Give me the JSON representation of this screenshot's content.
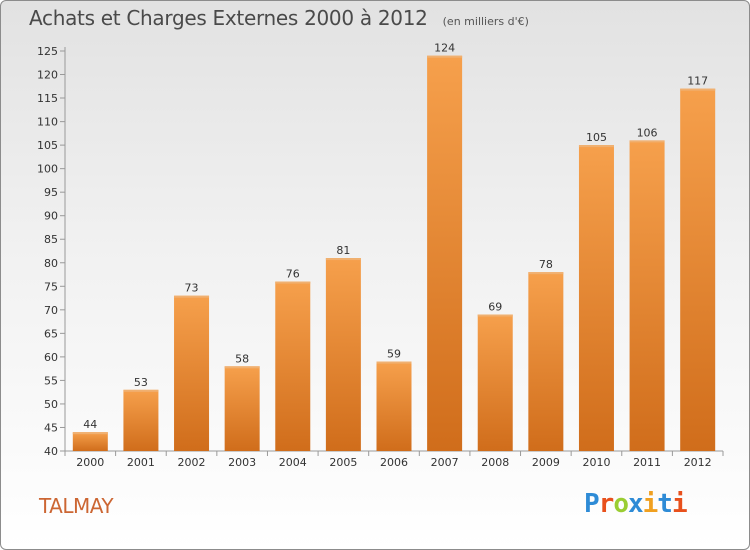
{
  "header": {
    "title": "Achats et Charges Externes 2000 à 2012",
    "unit": "(en milliers d'€)"
  },
  "footer": {
    "town": "TALMAY",
    "logo_letters": [
      "P",
      "r",
      "o",
      "x",
      "i",
      "t",
      "i"
    ],
    "logo_colors": [
      "#2e8bd6",
      "#e8501c",
      "#9acd32",
      "#2e8bd6",
      "#f0a020",
      "#2e8bd6",
      "#e8501c"
    ]
  },
  "chart_data": {
    "type": "bar",
    "title": "Achats et Charges Externes 2000 à 2012",
    "categories": [
      "2000",
      "2001",
      "2002",
      "2003",
      "2004",
      "2005",
      "2006",
      "2007",
      "2008",
      "2009",
      "2010",
      "2011",
      "2012"
    ],
    "values": [
      44,
      53,
      73,
      58,
      76,
      81,
      59,
      124,
      69,
      78,
      105,
      106,
      117
    ],
    "ylim": [
      40,
      125
    ],
    "yticks": [
      40,
      45,
      50,
      55,
      60,
      65,
      70,
      75,
      80,
      85,
      90,
      95,
      100,
      105,
      110,
      115,
      120,
      125
    ],
    "grid": false,
    "colors": {
      "bar_light": "#f6a04c",
      "bar_dark": "#d06d1b",
      "axis": "#999999"
    }
  }
}
